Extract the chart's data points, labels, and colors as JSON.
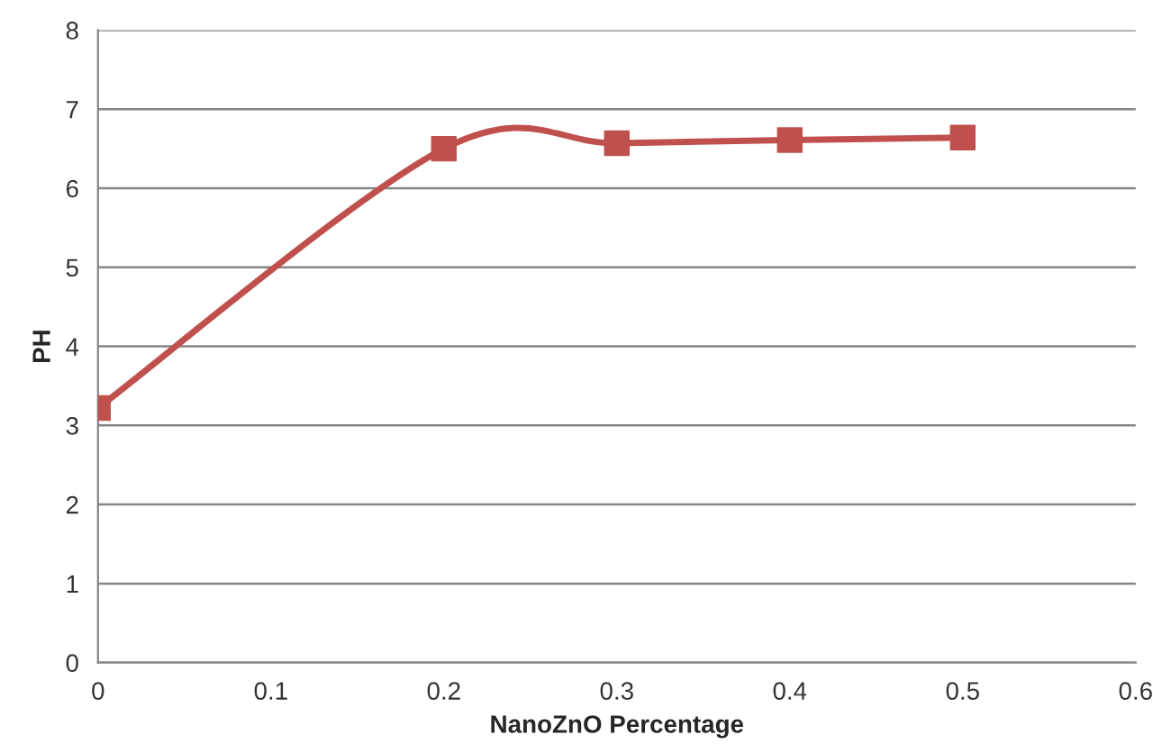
{
  "chart_data": {
    "type": "line",
    "xlabel": "NanoZnO Percentage",
    "ylabel": "PH",
    "x": [
      0,
      0.2,
      0.3,
      0.4,
      0.5
    ],
    "series": [
      {
        "color": "#c0504d",
        "values": [
          3.22,
          6.5,
          6.57,
          6.61,
          6.64
        ]
      }
    ],
    "xlim": [
      0,
      0.6
    ],
    "xticks": [
      0,
      0.1,
      0.2,
      0.3,
      0.4,
      0.5,
      0.6
    ],
    "ylim": [
      0,
      8
    ],
    "yticks": [
      0,
      1,
      2,
      3,
      4,
      5,
      6,
      7,
      8
    ],
    "grid": "y",
    "marker": "square",
    "line_style": "solid"
  }
}
